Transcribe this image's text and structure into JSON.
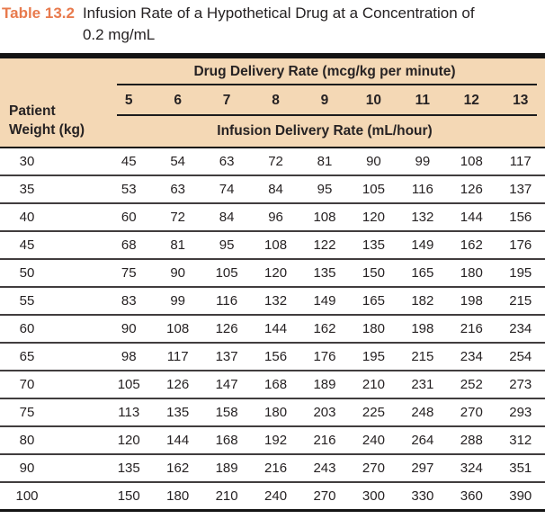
{
  "caption": {
    "label": "Table 13.2",
    "title_line1": "Infusion Rate of a Hypothetical Drug at a Concentration of",
    "title_line2": "0.2 mg/mL"
  },
  "table": {
    "col_group_header": "Drug Delivery Rate (mcg/kg per minute)",
    "rate_columns": [
      "5",
      "6",
      "7",
      "8",
      "9",
      "10",
      "11",
      "12",
      "13"
    ],
    "sub_group_header": "Infusion Delivery Rate (mL/hour)",
    "row_header_line1": "Patient",
    "row_header_line2": "Weight (kg)",
    "rows": [
      {
        "weight": "30",
        "values": [
          "45",
          "54",
          "63",
          "72",
          "81",
          "90",
          "99",
          "108",
          "117"
        ]
      },
      {
        "weight": "35",
        "values": [
          "53",
          "63",
          "74",
          "84",
          "95",
          "105",
          "116",
          "126",
          "137"
        ]
      },
      {
        "weight": "40",
        "values": [
          "60",
          "72",
          "84",
          "96",
          "108",
          "120",
          "132",
          "144",
          "156"
        ]
      },
      {
        "weight": "45",
        "values": [
          "68",
          "81",
          "95",
          "108",
          "122",
          "135",
          "149",
          "162",
          "176"
        ]
      },
      {
        "weight": "50",
        "values": [
          "75",
          "90",
          "105",
          "120",
          "135",
          "150",
          "165",
          "180",
          "195"
        ]
      },
      {
        "weight": "55",
        "values": [
          "83",
          "99",
          "116",
          "132",
          "149",
          "165",
          "182",
          "198",
          "215"
        ]
      },
      {
        "weight": "60",
        "values": [
          "90",
          "108",
          "126",
          "144",
          "162",
          "180",
          "198",
          "216",
          "234"
        ]
      },
      {
        "weight": "65",
        "values": [
          "98",
          "117",
          "137",
          "156",
          "176",
          "195",
          "215",
          "234",
          "254"
        ]
      },
      {
        "weight": "70",
        "values": [
          "105",
          "126",
          "147",
          "168",
          "189",
          "210",
          "231",
          "252",
          "273"
        ]
      },
      {
        "weight": "75",
        "values": [
          "113",
          "135",
          "158",
          "180",
          "203",
          "225",
          "248",
          "270",
          "293"
        ]
      },
      {
        "weight": "80",
        "values": [
          "120",
          "144",
          "168",
          "192",
          "216",
          "240",
          "264",
          "288",
          "312"
        ]
      },
      {
        "weight": "90",
        "values": [
          "135",
          "162",
          "189",
          "216",
          "243",
          "270",
          "297",
          "324",
          "351"
        ]
      },
      {
        "weight": "100",
        "values": [
          "150",
          "180",
          "210",
          "240",
          "270",
          "300",
          "330",
          "360",
          "390"
        ]
      }
    ]
  },
  "colors": {
    "caption_accent": "#e87a4d",
    "header_background": "#f4d8b5",
    "text": "#262223",
    "rule": "#141414"
  }
}
